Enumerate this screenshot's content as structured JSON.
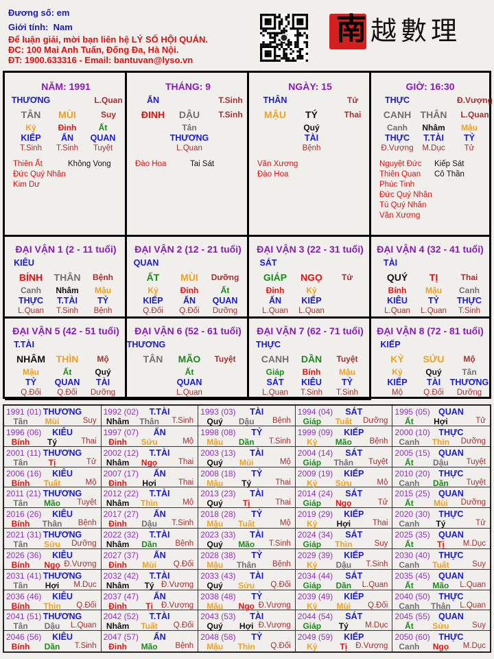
{
  "header": {
    "name_label": "Đương số: em",
    "gender_label": "Giới tính:",
    "gender_value": "Nam",
    "contact_line1": "Để luận giải, mời bạn liên hệ LÝ SỐ HỘI QUÁN.",
    "contact_line2": "ĐC: 100 Mai Anh Tuấn, Đống Đa, Hà Nội.",
    "contact_line3": "ĐT: 1900.633316 - Email: bantuvan@lyso.vn"
  },
  "logo": {
    "seal_char": "南",
    "text": "越數理"
  },
  "colors": {
    "wood": "#1a8a1a",
    "fire": "#e81010",
    "earth": "#f0a020",
    "metal": "#707070",
    "water": "#111111",
    "god": "#1a1ad0",
    "status": "#a03030",
    "title": "#8a1ab8"
  },
  "element_of": {
    "giáp": "wood",
    "ất": "wood",
    "dần": "wood",
    "mão": "wood",
    "bính": "fire",
    "đinh": "fire",
    "tị": "fire",
    "ngọ": "fire",
    "mậu": "earth",
    "kỷ": "earth",
    "thìn": "earth",
    "tuất": "earth",
    "sửu": "earth",
    "mùi": "earth",
    "canh": "metal",
    "tân": "metal",
    "thân": "metal",
    "dậu": "metal",
    "nhâm": "water",
    "quý": "water",
    "tý": "water",
    "hợi": "water"
  },
  "pillars": [
    {
      "title": "NĂM: 1991",
      "god": "THƯƠNG",
      "god_status": "L.Quan",
      "stem": "TÂN",
      "branch": "MÙI",
      "branch_status": "Suy",
      "hidden": [
        {
          "stem": "Kỷ",
          "god": "KIẾP",
          "status": "T.Sinh"
        },
        {
          "stem": "Đinh",
          "god": "ẤN",
          "status": "T.Sinh"
        },
        {
          "stem": "Ất",
          "god": "QUAN",
          "status": "Tuyệt"
        }
      ],
      "good_stars": [
        "Thiên Ất",
        "Đức Quý Nhân",
        "Kim Dư"
      ],
      "bad_stars": [
        "Không Vong"
      ]
    },
    {
      "title": "THÁNG: 9",
      "god": "ẤN",
      "god_status": "T.Sinh",
      "stem": "ĐINH",
      "branch": "DẬU",
      "branch_status": "T.Sinh",
      "hidden": [
        {
          "stem": "Tân",
          "god": "THƯƠNG",
          "status": "L.Quan"
        }
      ],
      "good_stars": [
        "Đào Hoa"
      ],
      "bad_stars": [
        "Tai Sát"
      ]
    },
    {
      "title": "NGÀY: 15",
      "god": "THÂN",
      "god_status": "Tử",
      "stem": "MẬU",
      "branch": "TÝ",
      "branch_status": "Thai",
      "hidden": [
        {
          "stem": "Quý",
          "god": "TÀI",
          "status": "Bệnh"
        }
      ],
      "good_stars": [
        "Văn Xương",
        "Đào Hoa"
      ],
      "bad_stars": []
    },
    {
      "title": "GIỜ: 16:30",
      "god": "THỰC",
      "god_status": "Đ.Vượng",
      "stem": "CANH",
      "branch": "THÂN",
      "branch_status": "L.Quan",
      "hidden": [
        {
          "stem": "Canh",
          "god": "THỰC",
          "status": "Đ.Vượng"
        },
        {
          "stem": "Nhâm",
          "god": "T.TÀI",
          "status": "M.Dục"
        },
        {
          "stem": "Mậu",
          "god": "TỶ",
          "status": "Tử"
        }
      ],
      "good_stars": [
        "Nguyệt Đức",
        "Thiên Quan",
        "Phúc Tinh",
        "Đức Quý Nhân",
        "Tú Quý Nhân",
        "Văn Xương"
      ],
      "bad_stars": [
        "Kiếp Sát",
        "Cô Thần"
      ]
    }
  ],
  "dai_van": [
    {
      "title": "ĐẠI VẬN 1 (2 - 11 tuổi)",
      "god": "KIÊU",
      "stem": "BÍNH",
      "branch": "THÂN",
      "branch_status": "Bệnh",
      "hidden": [
        {
          "stem": "Canh",
          "god": "THỰC",
          "status": "L.Quan"
        },
        {
          "stem": "Nhâm",
          "god": "T.TÀI",
          "status": "T.Sinh"
        },
        {
          "stem": "Mậu",
          "god": "TỶ",
          "status": "Bệnh"
        }
      ]
    },
    {
      "title": "ĐẠI VẬN 2 (12 - 21 tuổi)",
      "god": "QUAN",
      "stem": "ẤT",
      "branch": "MÙI",
      "branch_status": "Dưỡng",
      "hidden": [
        {
          "stem": "Kỷ",
          "god": "KIẾP",
          "status": "Q.Đối"
        },
        {
          "stem": "Đinh",
          "god": "ẤN",
          "status": "Q.Đối"
        },
        {
          "stem": "Ất",
          "god": "QUAN",
          "status": "Dưỡng"
        }
      ]
    },
    {
      "title": "ĐẠI VẬN 3 (22 - 31 tuổi)",
      "god": "SÁT",
      "stem": "GIÁP",
      "branch": "NGỌ",
      "branch_status": "Tử",
      "hidden": [
        {
          "stem": "Đinh",
          "god": "ẤN",
          "status": "L.Quan"
        },
        {
          "stem": "Kỷ",
          "god": "KIẾP",
          "status": "L.Quan"
        }
      ]
    },
    {
      "title": "ĐẠI VẬN 4 (32 - 41 tuổi)",
      "god": "TÀI",
      "stem": "QUÝ",
      "branch": "TỊ",
      "branch_status": "Thai",
      "hidden": [
        {
          "stem": "Bính",
          "god": "KIÊU",
          "status": "L.Quan"
        },
        {
          "stem": "Mậu",
          "god": "TỶ",
          "status": "L.Quan"
        },
        {
          "stem": "Canh",
          "god": "THỰC",
          "status": "T.Sinh"
        }
      ]
    },
    {
      "title": "ĐẠI VẬN 5 (42 - 51 tuổi)",
      "god": "T.TÀI",
      "stem": "NHÂM",
      "branch": "THÌN",
      "branch_status": "Mộ",
      "hidden": [
        {
          "stem": "Mậu",
          "god": "TỶ",
          "status": "Q.Đối"
        },
        {
          "stem": "Ất",
          "god": "QUAN",
          "status": "Q.Đối"
        },
        {
          "stem": "Quý",
          "god": "TÀI",
          "status": "Dưỡng"
        }
      ]
    },
    {
      "title": "ĐẠI VẬN 6 (52 - 61 tuổi)",
      "god": "THƯƠNG",
      "stem": "TÂN",
      "branch": "MÃO",
      "branch_status": "Tuyệt",
      "hidden": [
        {
          "stem": "Ất",
          "god": "QUAN",
          "status": "L.Quan"
        }
      ]
    },
    {
      "title": "ĐẠI VẬN 7 (62 - 71 tuổi)",
      "god": "THỰC",
      "stem": "CANH",
      "branch": "DẦN",
      "branch_status": "Tuyệt",
      "hidden": [
        {
          "stem": "Giáp",
          "god": "SÁT",
          "status": "L.Quan"
        },
        {
          "stem": "Bính",
          "god": "KIÊU",
          "status": "T.Sinh"
        },
        {
          "stem": "Mậu",
          "god": "TỶ",
          "status": "T.Sinh"
        }
      ]
    },
    {
      "title": "ĐẠI VẬN 8 (72 - 81 tuổi)",
      "god": "KIẾP",
      "stem": "KỶ",
      "branch": "SỬU",
      "branch_status": "Mộ",
      "hidden": [
        {
          "stem": "Kỷ",
          "god": "KIẾP",
          "status": "Mộ"
        },
        {
          "stem": "Quý",
          "god": "TÀI",
          "status": "Q.Đối"
        },
        {
          "stem": "Tân",
          "god": "THƯƠNG",
          "status": "Dưỡng"
        }
      ]
    }
  ],
  "years": [
    {
      "year": "1991 (01)",
      "god": "THƯƠNG",
      "stem": "Tân",
      "branch": "Mùi",
      "status": "Suy"
    },
    {
      "year": "1992 (02)",
      "god": "T.TÀI",
      "stem": "Nhâm",
      "branch": "Thân",
      "status": "T.Sinh"
    },
    {
      "year": "1993 (03)",
      "god": "TÀI",
      "stem": "Quý",
      "branch": "Dậu",
      "status": "Bệnh"
    },
    {
      "year": "1994 (04)",
      "god": "SÁT",
      "stem": "Giáp",
      "branch": "Tuất",
      "status": "Dưỡng"
    },
    {
      "year": "1995 (05)",
      "god": "QUAN",
      "stem": "Ất",
      "branch": "Hợi",
      "status": "Tử"
    },
    {
      "year": "1996 (06)",
      "god": "KIÊU",
      "stem": "Bính",
      "branch": "Tý",
      "status": "Thai"
    },
    {
      "year": "1997 (07)",
      "god": "ẤN",
      "stem": "Đinh",
      "branch": "Sửu",
      "status": "Mộ"
    },
    {
      "year": "1998 (08)",
      "god": "TỶ",
      "stem": "Mậu",
      "branch": "Dần",
      "status": "T.Sinh"
    },
    {
      "year": "1999 (09)",
      "god": "KIẾP",
      "stem": "Kỷ",
      "branch": "Mão",
      "status": "Bệnh"
    },
    {
      "year": "2000 (10)",
      "god": "THỰC",
      "stem": "Canh",
      "branch": "Thìn",
      "status": "Dưỡng"
    },
    {
      "year": "2001 (11)",
      "god": "THƯƠNG",
      "stem": "Tân",
      "branch": "Tị",
      "status": "Tử"
    },
    {
      "year": "2002 (12)",
      "god": "T.TÀI",
      "stem": "Nhâm",
      "branch": "Ngọ",
      "status": "Thai"
    },
    {
      "year": "2003 (13)",
      "god": "TÀI",
      "stem": "Quý",
      "branch": "Mùi",
      "status": "Mộ"
    },
    {
      "year": "2004 (14)",
      "god": "SÁT",
      "stem": "Giáp",
      "branch": "Thân",
      "status": "Tuyệt"
    },
    {
      "year": "2005 (15)",
      "god": "QUAN",
      "stem": "Ất",
      "branch": "Dậu",
      "status": "Tuyệt"
    },
    {
      "year": "2006 (16)",
      "god": "KIÊU",
      "stem": "Bính",
      "branch": "Tuất",
      "status": "Mộ"
    },
    {
      "year": "2007 (17)",
      "god": "ẤN",
      "stem": "Đinh",
      "branch": "Hợi",
      "status": "Thai"
    },
    {
      "year": "2008 (18)",
      "god": "TỶ",
      "stem": "Mậu",
      "branch": "Tý",
      "status": "Thai"
    },
    {
      "year": "2009 (19)",
      "god": "KIẾP",
      "stem": "Kỷ",
      "branch": "Sửu",
      "status": "Mộ"
    },
    {
      "year": "2010 (20)",
      "god": "THỰC",
      "stem": "Canh",
      "branch": "Dần",
      "status": "Tuyệt"
    },
    {
      "year": "2011 (21)",
      "god": "THƯƠNG",
      "stem": "Tân",
      "branch": "Mão",
      "status": "Tuyệt"
    },
    {
      "year": "2012 (22)",
      "god": "T.TÀI",
      "stem": "Nhâm",
      "branch": "Thìn",
      "status": "Mộ"
    },
    {
      "year": "2013 (23)",
      "god": "TÀI",
      "stem": "Quý",
      "branch": "Tị",
      "status": "Thai"
    },
    {
      "year": "2014 (24)",
      "god": "SÁT",
      "stem": "Giáp",
      "branch": "Ngọ",
      "status": "Tử"
    },
    {
      "year": "2015 (25)",
      "god": "QUAN",
      "stem": "Ất",
      "branch": "Mùi",
      "status": "Dưỡng"
    },
    {
      "year": "2016 (26)",
      "god": "KIÊU",
      "stem": "Bính",
      "branch": "Thân",
      "status": "Bệnh"
    },
    {
      "year": "2017 (27)",
      "god": "ẤN",
      "stem": "Đinh",
      "branch": "Dậu",
      "status": "T.Sinh"
    },
    {
      "year": "2018 (28)",
      "god": "TỶ",
      "stem": "Mậu",
      "branch": "Tuất",
      "status": "Mộ"
    },
    {
      "year": "2019 (29)",
      "god": "KIẾP",
      "stem": "Kỷ",
      "branch": "Hợi",
      "status": "Thai"
    },
    {
      "year": "2020 (30)",
      "god": "THỰC",
      "stem": "Canh",
      "branch": "Tý",
      "status": "Tử"
    },
    {
      "year": "2021 (31)",
      "god": "THƯƠNG",
      "stem": "Tân",
      "branch": "Sửu",
      "status": "Dưỡng"
    },
    {
      "year": "2022 (32)",
      "god": "T.TÀI",
      "stem": "Nhâm",
      "branch": "Dần",
      "status": "Bệnh"
    },
    {
      "year": "2023 (33)",
      "god": "TÀI",
      "stem": "Quý",
      "branch": "Mão",
      "status": "T.Sinh"
    },
    {
      "year": "2024 (34)",
      "god": "SÁT",
      "stem": "Giáp",
      "branch": "Thìn",
      "status": "Suy"
    },
    {
      "year": "2025 (35)",
      "god": "QUAN",
      "stem": "Ất",
      "branch": "Tị",
      "status": "M.Dục"
    },
    {
      "year": "2026 (36)",
      "god": "KIÊU",
      "stem": "Bính",
      "branch": "Ngọ",
      "status": "Đ.Vượng"
    },
    {
      "year": "2027 (37)",
      "god": "ẤN",
      "stem": "Đinh",
      "branch": "Mùi",
      "status": "Q.Đối"
    },
    {
      "year": "2028 (38)",
      "god": "TỶ",
      "stem": "Mậu",
      "branch": "Thân",
      "status": "Bệnh"
    },
    {
      "year": "2029 (39)",
      "god": "KIẾP",
      "stem": "Kỷ",
      "branch": "Dậu",
      "status": "T.Sinh"
    },
    {
      "year": "2030 (40)",
      "god": "THỰC",
      "stem": "Canh",
      "branch": "Tuất",
      "status": "Suy"
    },
    {
      "year": "2031 (41)",
      "god": "THƯƠNG",
      "stem": "Tân",
      "branch": "Hợi",
      "status": "M.Dục"
    },
    {
      "year": "2032 (42)",
      "god": "T.TÀI",
      "stem": "Nhâm",
      "branch": "Tý",
      "status": "Đ.Vượng"
    },
    {
      "year": "2033 (43)",
      "god": "TÀI",
      "stem": "Quý",
      "branch": "Sửu",
      "status": "Q.Đối"
    },
    {
      "year": "2034 (44)",
      "god": "SÁT",
      "stem": "Giáp",
      "branch": "Dần",
      "status": "L.Quan"
    },
    {
      "year": "2035 (45)",
      "god": "QUAN",
      "stem": "Ất",
      "branch": "Mão",
      "status": "L.Quan"
    },
    {
      "year": "2036 (46)",
      "god": "KIÊU",
      "stem": "Bính",
      "branch": "Thìn",
      "status": "Q.Đối"
    },
    {
      "year": "2037 (47)",
      "god": "ẤN",
      "stem": "Đinh",
      "branch": "Tị",
      "status": "Đ.Vượng"
    },
    {
      "year": "2038 (48)",
      "god": "TỶ",
      "stem": "Mậu",
      "branch": "Ngọ",
      "status": "Đ.Vượng"
    },
    {
      "year": "2039 (49)",
      "god": "KIẾP",
      "stem": "Kỷ",
      "branch": "Mùi",
      "status": "Q.Đối"
    },
    {
      "year": "2040 (50)",
      "god": "THỰC",
      "stem": "Canh",
      "branch": "Thân",
      "status": "L.Quan"
    },
    {
      "year": "2041 (51)",
      "god": "THƯƠNG",
      "stem": "Tân",
      "branch": "Dậu",
      "status": "L.Quan"
    },
    {
      "year": "2042 (52)",
      "god": "T.TÀI",
      "stem": "Nhâm",
      "branch": "Tuất",
      "status": "Q.Đối"
    },
    {
      "year": "2043 (53)",
      "god": "TÀI",
      "stem": "Quý",
      "branch": "Hợi",
      "status": "Đ.Vượng"
    },
    {
      "year": "2044 (54)",
      "god": "SÁT",
      "stem": "Giáp",
      "branch": "Tý",
      "status": "M.Dục"
    },
    {
      "year": "2045 (55)",
      "god": "QUAN",
      "stem": "Ất",
      "branch": "Sửu",
      "status": "Suy"
    },
    {
      "year": "2046 (56)",
      "god": "KIÊU",
      "stem": "Bính",
      "branch": "Dần",
      "status": "T.Sinh"
    },
    {
      "year": "2047 (57)",
      "god": "ẤN",
      "stem": "Đinh",
      "branch": "Mão",
      "status": "Bệnh"
    },
    {
      "year": "2048 (58)",
      "god": "TỶ",
      "stem": "Mậu",
      "branch": "Thìn",
      "status": "Q.Đối"
    },
    {
      "year": "2049 (59)",
      "god": "KIẾP",
      "stem": "Kỷ",
      "branch": "Tị",
      "status": "Đ.Vượng"
    },
    {
      "year": "2050 (60)",
      "god": "THỰC",
      "stem": "Canh",
      "branch": "Ngọ",
      "status": "M.Dục"
    }
  ]
}
